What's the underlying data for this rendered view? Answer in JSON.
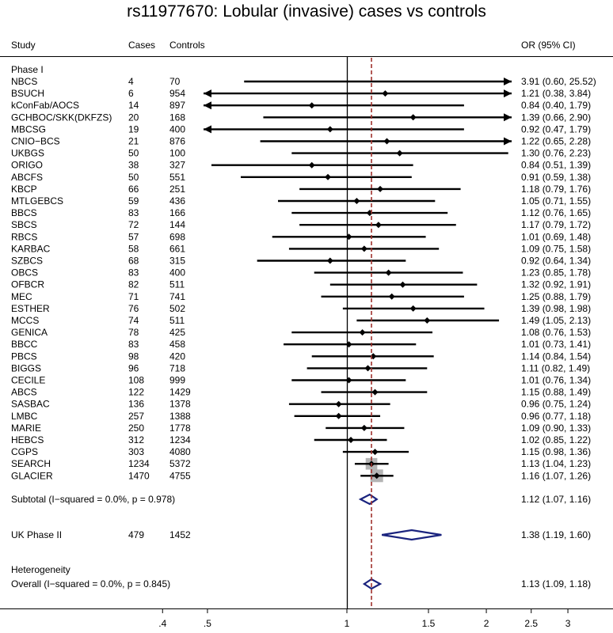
{
  "chart_data": {
    "type": "forest",
    "title": "rs11977670: Lobular (invasive) cases vs controls",
    "headers": {
      "study": "Study",
      "cases": "Cases",
      "controls": "Controls",
      "or": "OR (95% CI)"
    },
    "x_axis": {
      "scale": "log",
      "ticks": [
        ".4",
        ".5",
        "1",
        "1.5",
        "2",
        "2.5",
        "3"
      ],
      "tick_values": [
        0.4,
        0.5,
        1,
        1.5,
        2,
        2.5,
        3
      ],
      "range": [
        0.27,
        3.8
      ]
    },
    "null_line": 1,
    "overall_line": 1.13,
    "group_label": "Phase I",
    "studies": [
      {
        "name": "NBCS",
        "cases": "4",
        "controls": "70",
        "or": 3.91,
        "lo": 0.6,
        "hi": 25.52,
        "label": "3.91 (0.60, 25.52)"
      },
      {
        "name": "BSUCH",
        "cases": "6",
        "controls": "954",
        "or": 1.21,
        "lo": 0.38,
        "hi": 3.84,
        "label": "1.21 (0.38, 3.84)"
      },
      {
        "name": "kConFab/AOCS",
        "cases": "14",
        "controls": "897",
        "or": 0.84,
        "lo": 0.4,
        "hi": 1.79,
        "label": "0.84 (0.40, 1.79)"
      },
      {
        "name": "GCHBOC/SKK(DKFZS)",
        "cases": "20",
        "controls": "168",
        "or": 1.39,
        "lo": 0.66,
        "hi": 2.9,
        "label": "1.39 (0.66, 2.90)"
      },
      {
        "name": "MBCSG",
        "cases": "19",
        "controls": "400",
        "or": 0.92,
        "lo": 0.47,
        "hi": 1.79,
        "label": "0.92 (0.47, 1.79)"
      },
      {
        "name": "CNIO−BCS",
        "cases": "21",
        "controls": "876",
        "or": 1.22,
        "lo": 0.65,
        "hi": 2.28,
        "label": "1.22 (0.65, 2.28)"
      },
      {
        "name": "UKBGS",
        "cases": "50",
        "controls": "100",
        "or": 1.3,
        "lo": 0.76,
        "hi": 2.23,
        "label": "1.30 (0.76, 2.23)"
      },
      {
        "name": "ORIGO",
        "cases": "38",
        "controls": "327",
        "or": 0.84,
        "lo": 0.51,
        "hi": 1.39,
        "label": "0.84 (0.51, 1.39)"
      },
      {
        "name": "ABCFS",
        "cases": "50",
        "controls": "551",
        "or": 0.91,
        "lo": 0.59,
        "hi": 1.38,
        "label": "0.91 (0.59, 1.38)"
      },
      {
        "name": "KBCP",
        "cases": "66",
        "controls": "251",
        "or": 1.18,
        "lo": 0.79,
        "hi": 1.76,
        "label": "1.18 (0.79, 1.76)"
      },
      {
        "name": "MTLGEBCS",
        "cases": "59",
        "controls": "436",
        "or": 1.05,
        "lo": 0.71,
        "hi": 1.55,
        "label": "1.05 (0.71, 1.55)"
      },
      {
        "name": "BBCS",
        "cases": "83",
        "controls": "166",
        "or": 1.12,
        "lo": 0.76,
        "hi": 1.65,
        "label": "1.12 (0.76, 1.65)"
      },
      {
        "name": "SBCS",
        "cases": "72",
        "controls": "144",
        "or": 1.17,
        "lo": 0.79,
        "hi": 1.72,
        "label": "1.17 (0.79, 1.72)"
      },
      {
        "name": "RBCS",
        "cases": "57",
        "controls": "698",
        "or": 1.01,
        "lo": 0.69,
        "hi": 1.48,
        "label": "1.01 (0.69, 1.48)"
      },
      {
        "name": "KARBAC",
        "cases": "58",
        "controls": "661",
        "or": 1.09,
        "lo": 0.75,
        "hi": 1.58,
        "label": "1.09 (0.75, 1.58)"
      },
      {
        "name": "SZBCS",
        "cases": "68",
        "controls": "315",
        "or": 0.92,
        "lo": 0.64,
        "hi": 1.34,
        "label": "0.92 (0.64, 1.34)"
      },
      {
        "name": "OBCS",
        "cases": "83",
        "controls": "400",
        "or": 1.23,
        "lo": 0.85,
        "hi": 1.78,
        "label": "1.23 (0.85, 1.78)"
      },
      {
        "name": "OFBCR",
        "cases": "82",
        "controls": "511",
        "or": 1.32,
        "lo": 0.92,
        "hi": 1.91,
        "label": "1.32 (0.92, 1.91)"
      },
      {
        "name": "MEC",
        "cases": "71",
        "controls": "741",
        "or": 1.25,
        "lo": 0.88,
        "hi": 1.79,
        "label": "1.25 (0.88, 1.79)"
      },
      {
        "name": "ESTHER",
        "cases": "76",
        "controls": "502",
        "or": 1.39,
        "lo": 0.98,
        "hi": 1.98,
        "label": "1.39 (0.98, 1.98)"
      },
      {
        "name": "MCCS",
        "cases": "74",
        "controls": "511",
        "or": 1.49,
        "lo": 1.05,
        "hi": 2.13,
        "label": "1.49 (1.05, 2.13)"
      },
      {
        "name": "GENICA",
        "cases": "78",
        "controls": "425",
        "or": 1.08,
        "lo": 0.76,
        "hi": 1.53,
        "label": "1.08 (0.76, 1.53)"
      },
      {
        "name": "BBCC",
        "cases": "83",
        "controls": "458",
        "or": 1.01,
        "lo": 0.73,
        "hi": 1.41,
        "label": "1.01 (0.73, 1.41)"
      },
      {
        "name": "PBCS",
        "cases": "98",
        "controls": "420",
        "or": 1.14,
        "lo": 0.84,
        "hi": 1.54,
        "label": "1.14 (0.84, 1.54)"
      },
      {
        "name": "BIGGS",
        "cases": "96",
        "controls": "718",
        "or": 1.11,
        "lo": 0.82,
        "hi": 1.49,
        "label": "1.11 (0.82, 1.49)"
      },
      {
        "name": "CECILE",
        "cases": "108",
        "controls": "999",
        "or": 1.01,
        "lo": 0.76,
        "hi": 1.34,
        "label": "1.01 (0.76, 1.34)"
      },
      {
        "name": "ABCS",
        "cases": "122",
        "controls": "1429",
        "or": 1.15,
        "lo": 0.88,
        "hi": 1.49,
        "label": "1.15 (0.88, 1.49)"
      },
      {
        "name": "SASBAC",
        "cases": "136",
        "controls": "1378",
        "or": 0.96,
        "lo": 0.75,
        "hi": 1.24,
        "label": "0.96 (0.75, 1.24)"
      },
      {
        "name": "LMBC",
        "cases": "257",
        "controls": "1388",
        "or": 0.96,
        "lo": 0.77,
        "hi": 1.18,
        "label": "0.96 (0.77, 1.18)"
      },
      {
        "name": "MARIE",
        "cases": "250",
        "controls": "1778",
        "or": 1.09,
        "lo": 0.9,
        "hi": 1.33,
        "label": "1.09 (0.90, 1.33)"
      },
      {
        "name": "HEBCS",
        "cases": "312",
        "controls": "1234",
        "or": 1.02,
        "lo": 0.85,
        "hi": 1.22,
        "label": "1.02 (0.85, 1.22)"
      },
      {
        "name": "CGPS",
        "cases": "303",
        "controls": "4080",
        "or": 1.15,
        "lo": 0.98,
        "hi": 1.36,
        "label": "1.15 (0.98, 1.36)"
      },
      {
        "name": "SEARCH",
        "cases": "1234",
        "controls": "5372",
        "or": 1.13,
        "lo": 1.04,
        "hi": 1.23,
        "label": "1.13 (1.04, 1.23)"
      },
      {
        "name": "GLACIER",
        "cases": "1470",
        "controls": "4755",
        "or": 1.16,
        "lo": 1.07,
        "hi": 1.26,
        "label": "1.16 (1.07, 1.26)"
      }
    ],
    "subtotal": {
      "label": "Subtotal  (I−squared = 0.0%, p = 0.978)",
      "or": 1.12,
      "lo": 1.07,
      "hi": 1.16,
      "or_label": "1.12 (1.07, 1.16)"
    },
    "phase2": {
      "name": "UK Phase II",
      "cases": "479",
      "controls": "1452",
      "or": 1.38,
      "lo": 1.19,
      "hi": 1.6,
      "label": "1.38 (1.19, 1.60)"
    },
    "heterogeneity_label": "Heterogeneity",
    "overall": {
      "label": "Overall  (I−squared = 0.0%, p = 0.845)",
      "or": 1.13,
      "lo": 1.09,
      "hi": 1.18,
      "or_label": "1.13 (1.09, 1.18)"
    },
    "colors": {
      "diamond": "#1a237e",
      "overall_line": "#a0322d",
      "weight_box": "#b4b4b4",
      "text": "#000000"
    }
  }
}
